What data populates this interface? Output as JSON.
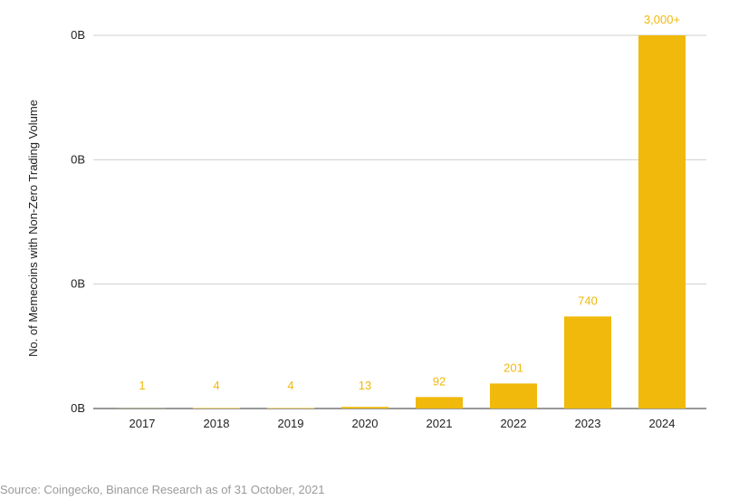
{
  "chart_data": {
    "type": "bar",
    "ylabel": "No. of Memecoins with Non-Zero Trading Volume",
    "xlabel": "",
    "categories": [
      "2017",
      "2018",
      "2019",
      "2020",
      "2021",
      "2022",
      "2023",
      "2024"
    ],
    "values": [
      1,
      4,
      4,
      13,
      92,
      201,
      740,
      3000
    ],
    "data_labels": [
      "1",
      "4",
      "4",
      "13",
      "92",
      "201",
      "740",
      "3,000+"
    ],
    "y_tick_labels": [
      "0B",
      "0B",
      "0B",
      "0B"
    ],
    "ylim": [
      0,
      3000
    ],
    "grid": true,
    "bar_color": "#F0B90B",
    "label_color": "#F0B90B"
  },
  "source": "Source: Coingecko, Binance Research as of 31 October, 2021"
}
